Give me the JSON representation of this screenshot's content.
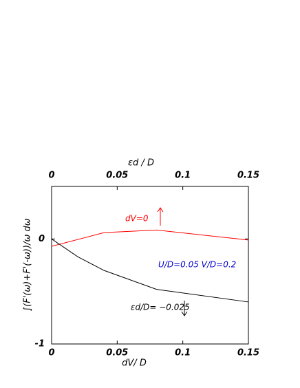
{
  "chart_data": {
    "type": "line",
    "x_label": "dV/ D",
    "x2_label": "εd / D",
    "y_label": "∫(F'(ω)+F'(-ω))/ω dω",
    "xlim": [
      0,
      0.15
    ],
    "xticks": [
      0,
      0.05,
      0.1,
      0.15
    ],
    "x2lim": [
      0,
      0.15
    ],
    "x2ticks": [
      0,
      0.05,
      0.1,
      0.15
    ],
    "ylim": [
      -1,
      0.5
    ],
    "yticks": [
      0,
      -1
    ],
    "annotations": [
      "U/D=0.05  V/D=0.2"
    ],
    "series": [
      {
        "name": "dV=0",
        "color": "#ff0000",
        "axis": "x2",
        "x": [
          0,
          0.04,
          0.08,
          0.15
        ],
        "values": [
          -0.07,
          0.06,
          0.085,
          -0.01
        ]
      },
      {
        "name": "εd/D= −0.025",
        "color": "#000000",
        "x": [
          0,
          0.02,
          0.04,
          0.08,
          0.15
        ],
        "values": [
          0,
          -0.17,
          -0.3,
          -0.48,
          -0.6
        ]
      }
    ]
  }
}
